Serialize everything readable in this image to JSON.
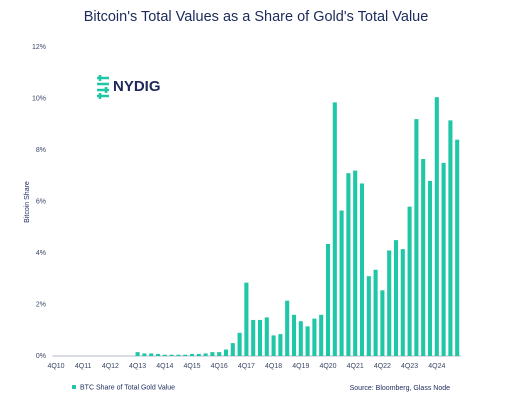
{
  "chart_data": {
    "type": "bar",
    "title": "Bitcoin's Total Values as a Share of Gold's Total Value",
    "logo": "NYDIG",
    "y_label": "Bitcoin Share",
    "source": "Source: Bloomberg, Glass Node",
    "categories": [
      "4Q10",
      null,
      null,
      null,
      "4Q11",
      null,
      null,
      null,
      "4Q12",
      null,
      null,
      null,
      "4Q13",
      null,
      null,
      null,
      "4Q14",
      null,
      null,
      null,
      "4Q15",
      null,
      null,
      null,
      "4Q16",
      null,
      null,
      null,
      "4Q17",
      null,
      null,
      null,
      "4Q18",
      null,
      null,
      null,
      "4Q19",
      null,
      null,
      null,
      "4Q20",
      null,
      null,
      null,
      "4Q21",
      null,
      null,
      null,
      "4Q22",
      null,
      null,
      null,
      "4Q23",
      null,
      null,
      null,
      "4Q24",
      null,
      null,
      null
    ],
    "series": [
      {
        "name": "BTC Share of Total Gold Value",
        "color": "#1fc7a7",
        "values": [
          0,
          0,
          0,
          0,
          0,
          0,
          0,
          0,
          0,
          0,
          0,
          0,
          0.15,
          0.1,
          0.1,
          0.08,
          0.05,
          0.05,
          0.05,
          0.05,
          0.08,
          0.08,
          0.1,
          0.15,
          0.15,
          0.25,
          0.5,
          0.9,
          2.85,
          1.4,
          1.4,
          1.5,
          0.8,
          0.85,
          2.15,
          1.6,
          1.35,
          1.15,
          1.45,
          1.6,
          4.35,
          9.85,
          5.65,
          7.1,
          7.2,
          6.7,
          3.1,
          3.35,
          2.55,
          4.1,
          4.5,
          4.15,
          5.8,
          9.2,
          7.65,
          6.8,
          10.05,
          7.5,
          9.15,
          8.4
        ]
      }
    ],
    "ylim": [
      0,
      12
    ],
    "yticks": [
      {
        "value": 0,
        "label": "0%"
      },
      {
        "value": 2,
        "label": "2%"
      },
      {
        "value": 4,
        "label": "4%"
      },
      {
        "value": 6,
        "label": "6%"
      },
      {
        "value": 8,
        "label": "8%"
      },
      {
        "value": 10,
        "label": "10%"
      },
      {
        "value": 12,
        "label": "12%"
      }
    ],
    "grid": false,
    "legend": "bottom-left"
  }
}
